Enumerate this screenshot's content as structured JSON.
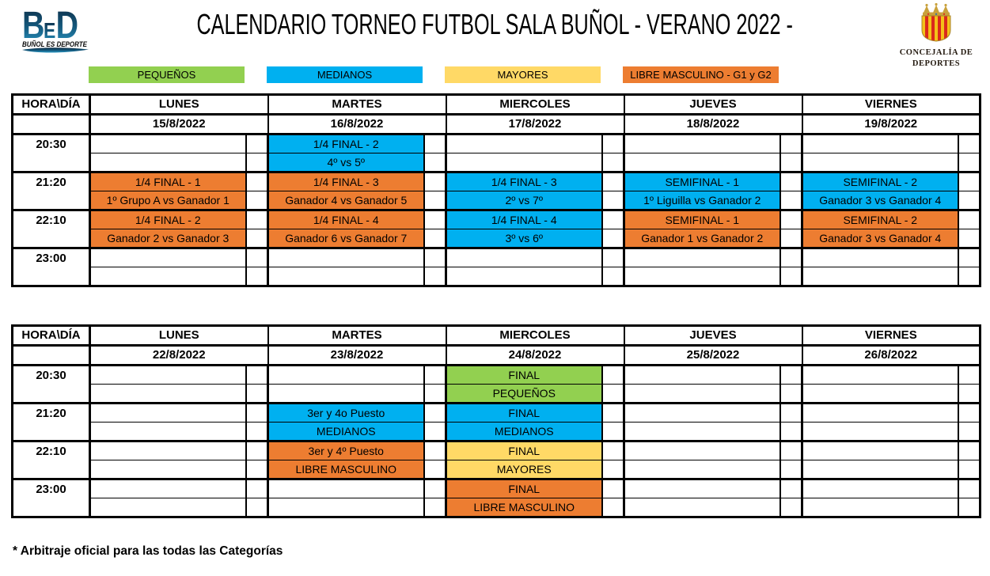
{
  "header": {
    "title": "CALENDARIO TORNEO FUTBOL SALA BUÑOL - VERANO 2022 -",
    "left_logo": {
      "letters": [
        "B",
        "E",
        "D"
      ],
      "tagline": "BUÑOL ES DEPORTE"
    },
    "right_logo": {
      "lines": [
        "CONCEJALÍA DE",
        "DEPORTES"
      ]
    }
  },
  "palette": {
    "green": "#92D050",
    "blue": "#00B0F0",
    "yellow": "#FFD966",
    "orange": "#ED7D31"
  },
  "legend": [
    {
      "label": "PEQUEÑOS",
      "color": "green"
    },
    {
      "label": "MEDIANOS",
      "color": "blue"
    },
    {
      "label": "MAYORES",
      "color": "yellow"
    },
    {
      "label": "LIBRE MASCULINO - G1 y G2",
      "color": "orange"
    }
  ],
  "tables": [
    {
      "corner": "HORA\\DÍA",
      "days": [
        "LUNES",
        "MARTES",
        "MIERCOLES",
        "JUEVES",
        "VIERNES"
      ],
      "dates": [
        "15/8/2022",
        "16/8/2022",
        "17/8/2022",
        "18/8/2022",
        "19/8/2022"
      ],
      "slots": [
        {
          "time": "20:30",
          "cells": [
            null,
            {
              "color": "blue",
              "title": "1/4 FINAL - 2",
              "sub": "4º vs 5º"
            },
            null,
            null,
            null
          ]
        },
        {
          "time": "21:20",
          "cells": [
            {
              "color": "orange",
              "title": "1/4 FINAL - 1",
              "sub": "1º Grupo A vs Ganador 1"
            },
            {
              "color": "orange",
              "title": "1/4 FINAL - 3",
              "sub": "Ganador 4 vs Ganador 5"
            },
            {
              "color": "blue",
              "title": "1/4 FINAL - 3",
              "sub": "2º vs 7º"
            },
            {
              "color": "blue",
              "title": "SEMIFINAL - 1",
              "sub": "1º Liguilla vs Ganador 2"
            },
            {
              "color": "blue",
              "title": "SEMIFINAL - 2",
              "sub": "Ganador 3 vs Ganador 4"
            }
          ]
        },
        {
          "time": "22:10",
          "cells": [
            {
              "color": "orange",
              "title": "1/4 FINAL - 2",
              "sub": "Ganador 2 vs Ganador 3"
            },
            {
              "color": "orange",
              "title": "1/4 FINAL - 4",
              "sub": "Ganador 6 vs Ganador 7"
            },
            {
              "color": "blue",
              "title": "1/4 FINAL - 4",
              "sub": "3º vs 6º"
            },
            {
              "color": "orange",
              "title": "SEMIFINAL - 1",
              "sub": "Ganador 1 vs Ganador 2"
            },
            {
              "color": "orange",
              "title": "SEMIFINAL - 2",
              "sub": "Ganador 3 vs Ganador 4"
            }
          ]
        },
        {
          "time": "23:00",
          "cells": [
            null,
            null,
            null,
            null,
            null
          ]
        }
      ]
    },
    {
      "corner": "HORA\\DÍA",
      "days": [
        "LUNES",
        "MARTES",
        "MIERCOLES",
        "JUEVES",
        "VIERNES"
      ],
      "dates": [
        "22/8/2022",
        "23/8/2022",
        "24/8/2022",
        "25/8/2022",
        "26/8/2022"
      ],
      "slots": [
        {
          "time": "20:30",
          "cells": [
            null,
            null,
            {
              "color": "green",
              "title": "FINAL",
              "sub": "PEQUEÑOS"
            },
            null,
            null
          ]
        },
        {
          "time": "21:20",
          "cells": [
            null,
            {
              "color": "blue",
              "title": "3er y 4o Puesto",
              "sub": "MEDIANOS"
            },
            {
              "color": "blue",
              "title": "FINAL",
              "sub": "MEDIANOS"
            },
            null,
            null
          ]
        },
        {
          "time": "22:10",
          "cells": [
            null,
            {
              "color": "orange",
              "title": "3er y 4º Puesto",
              "sub": "LIBRE MASCULINO"
            },
            {
              "color": "yellow",
              "title": "FINAL",
              "sub": "MAYORES"
            },
            null,
            null
          ]
        },
        {
          "time": "23:00",
          "cells": [
            null,
            null,
            {
              "color": "orange",
              "title": "FINAL",
              "sub": "LIBRE MASCULINO"
            },
            null,
            null
          ]
        }
      ]
    }
  ],
  "footnote": "* Arbitraje oficial para las todas las Categorías"
}
